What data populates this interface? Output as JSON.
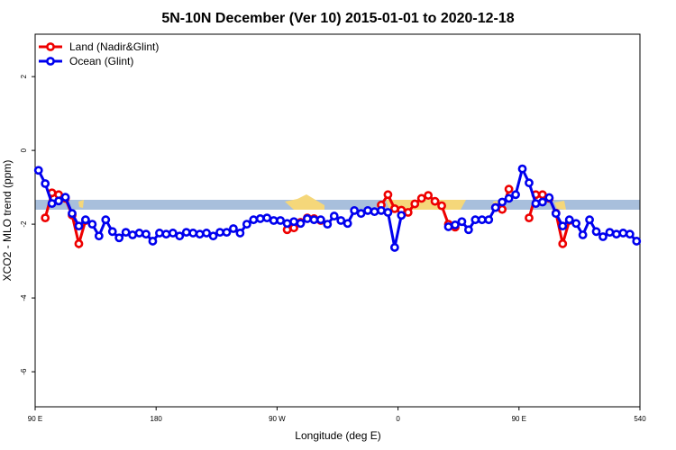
{
  "chart_data": {
    "type": "line",
    "title": "5N-10N December (Ver 10)   2015-01-01 to 2020-12-18",
    "xlabel": "Longitude (deg E)",
    "ylabel": "XCO2 - MLO trend (ppm)",
    "xlim": [
      90,
      540
    ],
    "ylim": [
      -6.95,
      3.15
    ],
    "xticks": [
      {
        "value": 90,
        "label": "90 E"
      },
      180,
      {
        "value": 270,
        "label": "90 W"
      },
      {
        "value": 360,
        "label": "0"
      },
      {
        "value": 450,
        "label": "90 E"
      },
      540
    ],
    "yticks": [
      -6,
      -4,
      -2,
      0,
      2
    ],
    "legend": "top-left",
    "x": [
      92.5,
      97.5,
      102.5,
      107.5,
      112.5,
      117.5,
      122.5,
      127.5,
      132.5,
      137.5,
      142.5,
      147.5,
      152.5,
      157.5,
      162.5,
      167.5,
      172.5,
      177.5,
      182.5,
      187.5,
      192.5,
      197.5,
      202.5,
      207.5,
      212.5,
      217.5,
      222.5,
      227.5,
      232.5,
      237.5,
      242.5,
      247.5,
      252.5,
      257.5,
      262.5,
      267.5,
      272.5,
      277.5,
      282.5,
      287.5,
      292.5,
      297.5,
      302.5,
      307.5,
      312.5,
      317.5,
      322.5,
      327.5,
      332.5,
      337.5,
      342.5,
      347.5,
      352.5,
      357.5,
      362.5,
      367.5,
      372.5,
      377.5,
      382.5,
      387.5,
      392.5,
      397.5,
      402.5,
      407.5,
      412.5,
      417.5,
      422.5,
      427.5,
      432.5,
      437.5,
      442.5,
      447.5,
      452.5,
      457.5,
      462.5,
      467.5,
      472.5,
      477.5,
      482.5,
      487.5,
      492.5,
      497.5,
      502.5,
      507.5,
      512.5,
      517.5,
      522.5,
      527.5,
      532.5,
      537.5
    ],
    "series": [
      {
        "name": "Land (Nadir&Glint)",
        "color": "#ee0000",
        "values": [
          null,
          -1.83,
          -1.15,
          -1.2,
          -1.3,
          -1.75,
          -2.53,
          -1.9,
          null,
          null,
          null,
          null,
          null,
          null,
          null,
          null,
          null,
          null,
          null,
          null,
          null,
          null,
          null,
          null,
          null,
          null,
          null,
          null,
          null,
          null,
          null,
          null,
          null,
          null,
          null,
          null,
          null,
          -2.15,
          -2.1,
          -1.95,
          -1.83,
          -1.85,
          -1.9,
          null,
          null,
          null,
          null,
          null,
          null,
          null,
          null,
          -1.48,
          -1.2,
          -1.58,
          -1.62,
          -1.68,
          -1.45,
          -1.3,
          -1.22,
          -1.38,
          -1.5,
          -2.0,
          -2.08,
          null,
          null,
          null,
          null,
          null,
          -1.55,
          -1.6,
          -1.05,
          null,
          null,
          -1.83,
          -1.2,
          -1.2,
          -1.3,
          -1.7,
          -2.53,
          -1.9,
          null,
          null,
          null,
          null,
          null,
          null,
          null,
          null,
          null,
          null
        ]
      },
      {
        "name": "Ocean (Glint)",
        "color": "#0000ee",
        "values": [
          -0.54,
          -0.9,
          -1.44,
          -1.37,
          -1.27,
          -1.71,
          -2.05,
          -1.88,
          -2.0,
          -2.32,
          -1.88,
          -2.2,
          -2.37,
          -2.22,
          -2.29,
          -2.24,
          -2.27,
          -2.46,
          -2.24,
          -2.27,
          -2.24,
          -2.32,
          -2.22,
          -2.24,
          -2.27,
          -2.24,
          -2.32,
          -2.22,
          -2.22,
          -2.12,
          -2.24,
          -2.0,
          -1.88,
          -1.85,
          -1.83,
          -1.9,
          -1.9,
          -1.98,
          -1.93,
          -1.98,
          -1.85,
          -1.88,
          -1.88,
          -2.0,
          -1.78,
          -1.9,
          -1.98,
          -1.63,
          -1.71,
          -1.63,
          -1.66,
          -1.63,
          -1.68,
          -2.63,
          -1.76,
          null,
          null,
          null,
          null,
          null,
          null,
          -2.07,
          -2.02,
          -1.93,
          -2.15,
          -1.88,
          -1.88,
          -1.88,
          -1.55,
          -1.4,
          -1.3,
          -1.2,
          -0.5,
          -0.88,
          -1.44,
          -1.4,
          -1.28,
          -1.71,
          -2.05,
          -1.88,
          -1.98,
          -2.29,
          -1.88,
          -2.2,
          -2.34,
          -2.22,
          -2.27,
          -2.24,
          -2.27,
          -2.46
        ]
      }
    ]
  }
}
